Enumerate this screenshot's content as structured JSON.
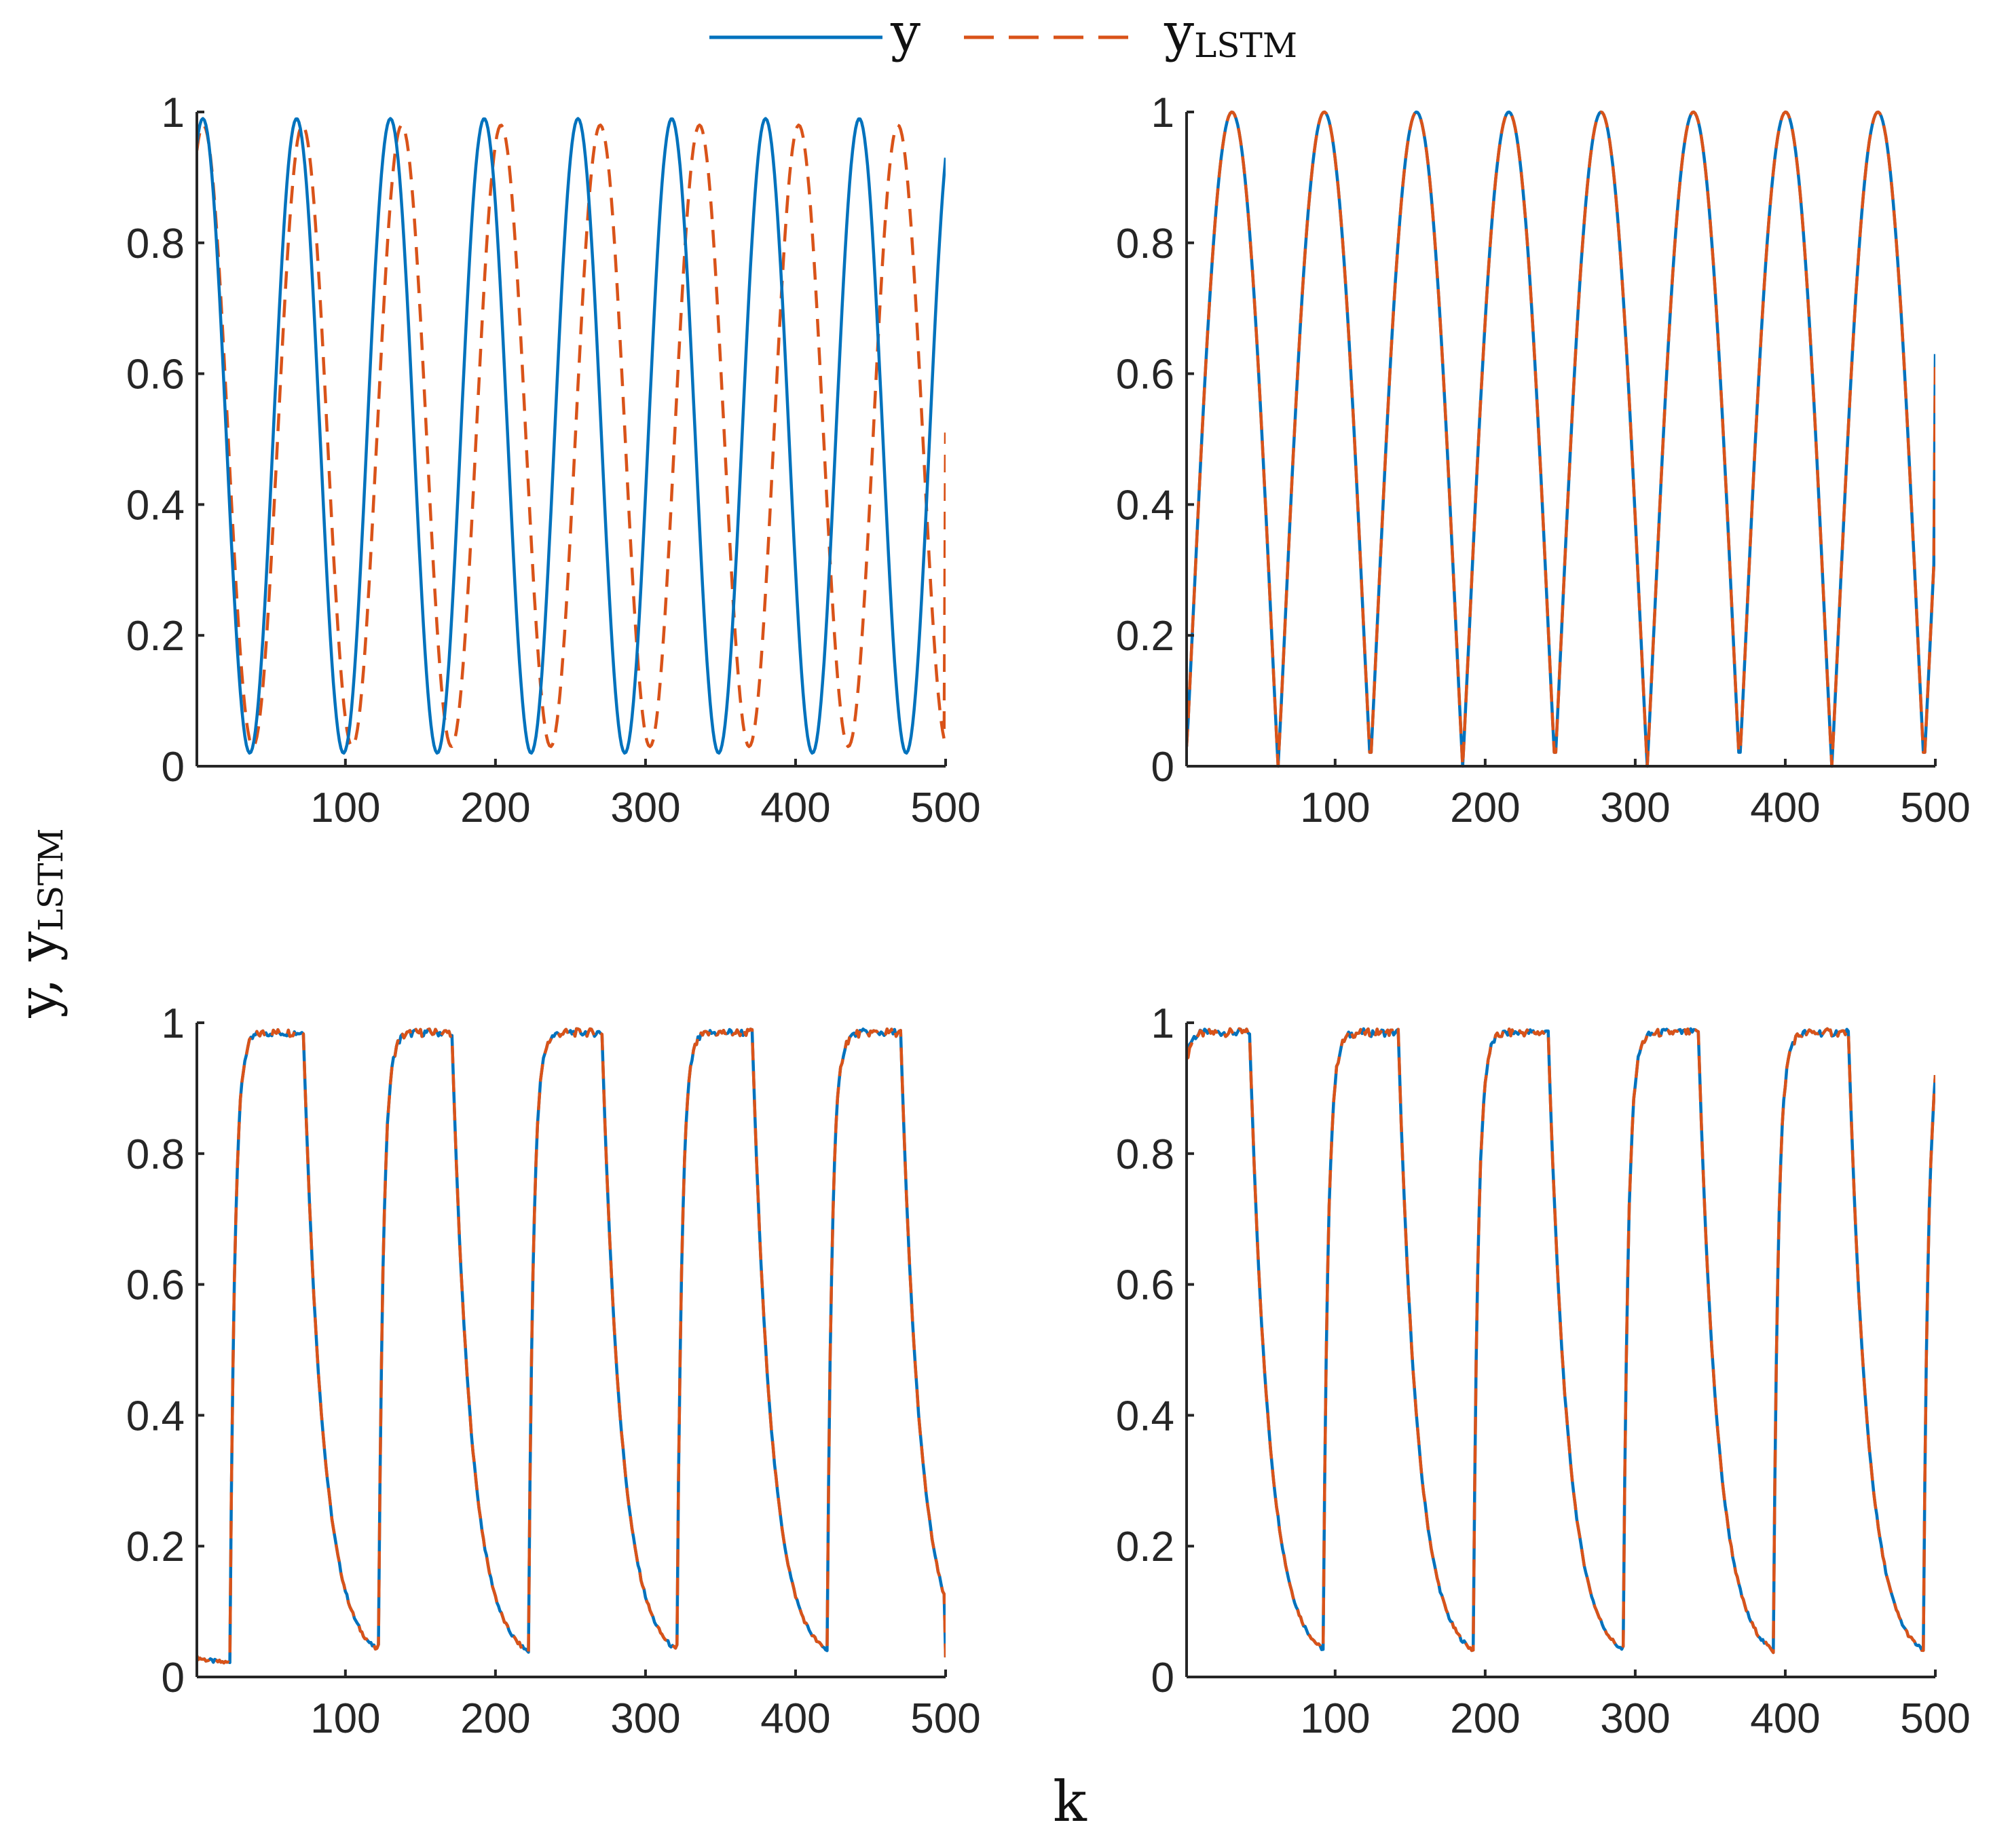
{
  "legend": {
    "entries": [
      {
        "label": "y",
        "color": "#0072BD",
        "style": "solid"
      },
      {
        "label_main": "y",
        "label_sub": "LSTM",
        "color": "#D95319",
        "style": "dashed"
      }
    ],
    "placement": "top-center"
  },
  "shared_labels": {
    "ylabel_main1": "y",
    "ylabel_sep": ", ",
    "ylabel_main2": "y",
    "ylabel_sub": "LSTM",
    "xlabel": "k"
  },
  "colors": {
    "y": "#0072BD",
    "y_lstm": "#D95319"
  },
  "chart_data": [
    {
      "type": "line",
      "panel": "top-left",
      "xlim": [
        1,
        500
      ],
      "ylim": [
        0,
        1
      ],
      "xticks": [
        "100",
        "200",
        "300",
        "400",
        "500"
      ],
      "yticks": [
        "0",
        "0.2",
        "0.4",
        "0.6",
        "0.8",
        "1"
      ],
      "series": [
        {
          "name": "y",
          "shape": "sine",
          "period": 62.5,
          "peak_x": 5,
          "min": 0.02,
          "max": 0.99
        },
        {
          "name": "y_LSTM",
          "shape": "sine-drifting-segments",
          "period": 65.2,
          "peak_x": 5,
          "min": 0.03,
          "max": 0.98,
          "segment_breaks": [
            117,
            178,
            241,
            298,
            362,
            425,
            490
          ],
          "segment_mins": [
            0.03,
            0.03,
            0.04,
            0.04,
            0.04,
            0.03,
            0.04
          ],
          "end_value": 0.51
        }
      ]
    },
    {
      "type": "line",
      "panel": "top-right",
      "xlim": [
        1,
        500
      ],
      "ylim": [
        0,
        1
      ],
      "xticks": [
        "100",
        "200",
        "300",
        "400",
        "500"
      ],
      "yticks": [
        "0",
        "0.2",
        "0.4",
        "0.6",
        "0.8",
        "1"
      ],
      "series": [
        {
          "name": "y",
          "shape": "sine-with-cusp-minima",
          "period": 61.5,
          "trough_x": 62,
          "min": 0.0,
          "max": 1.0,
          "start_value": 0.03,
          "end_value": 0.63
        },
        {
          "name": "y_LSTM",
          "shape": "sine-with-cusp-minima",
          "period": 61.5,
          "trough_x": 62,
          "min": 0.0,
          "max": 1.0,
          "start_value": 0.03,
          "end_value": 0.62
        }
      ]
    },
    {
      "type": "line",
      "panel": "bottom-left",
      "xlim": [
        1,
        500
      ],
      "ylim": [
        0,
        1
      ],
      "xticks": [
        "100",
        "200",
        "300",
        "400",
        "500"
      ],
      "yticks": [
        "0",
        "0.2",
        "0.4",
        "0.6",
        "0.8",
        "1"
      ],
      "series": [
        {
          "name": "y",
          "shape": "square-response",
          "rises_at": [
            23,
            122,
            222,
            321,
            421
          ],
          "falls_at": [
            72,
            171,
            271,
            371,
            470
          ],
          "low": 0.02,
          "high": 0.985,
          "start_value": 0.03,
          "end_value": 0.03
        },
        {
          "name": "y_LSTM",
          "shape": "square-response",
          "rises_at": [
            23,
            122,
            222,
            321,
            421
          ],
          "falls_at": [
            72,
            171,
            271,
            371,
            470
          ],
          "low": 0.02,
          "high": 0.985,
          "start_value": 0.03,
          "end_value": 0.03
        }
      ]
    },
    {
      "type": "line",
      "panel": "bottom-right",
      "xlim": [
        1,
        500
      ],
      "ylim": [
        0,
        1
      ],
      "xticks": [
        "100",
        "200",
        "300",
        "400",
        "500"
      ],
      "yticks": [
        "0",
        "0.2",
        "0.4",
        "0.6",
        "0.8",
        "1"
      ],
      "series": [
        {
          "name": "y",
          "shape": "square-response",
          "rises_at": [
            92,
            192,
            292,
            392,
            492
          ],
          "falls_at": [
            43,
            142,
            242,
            342,
            442
          ],
          "low": 0.02,
          "high": 0.985,
          "start_value": 0.95,
          "end_value": 0.92
        },
        {
          "name": "y_LSTM",
          "shape": "square-response",
          "rises_at": [
            92,
            192,
            292,
            392,
            492
          ],
          "falls_at": [
            43,
            142,
            242,
            342,
            442
          ],
          "low": 0.02,
          "high": 0.985,
          "start_value": 0.94,
          "end_value": 0.92
        }
      ]
    }
  ]
}
